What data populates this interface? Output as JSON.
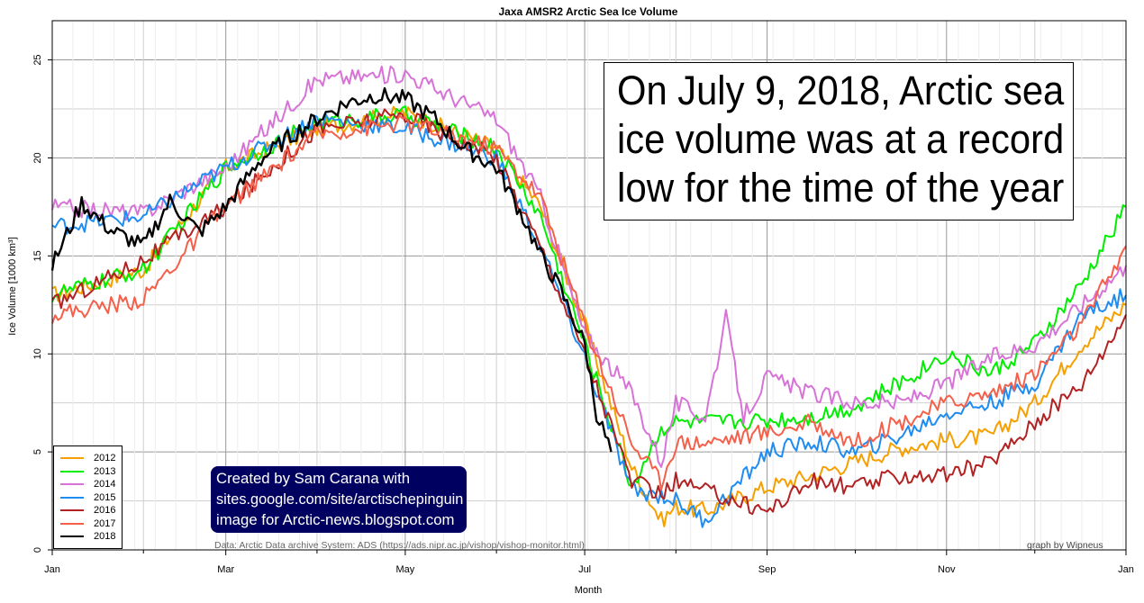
{
  "chart_data": {
    "type": "line",
    "title": "Jaxa AMSR2 Arctic Sea Ice Volume",
    "xlabel": "Month",
    "ylabel": "Ice Volume [1000 km³]",
    "ylim": [
      0,
      27
    ],
    "yticks": [
      0,
      5,
      10,
      15,
      20,
      25
    ],
    "xlim": [
      0,
      365
    ],
    "xticks": [
      {
        "day": 0,
        "label": "Jan"
      },
      {
        "day": 59,
        "label": "Mar"
      },
      {
        "day": 120,
        "label": "May"
      },
      {
        "day": 181,
        "label": "Jul"
      },
      {
        "day": 243,
        "label": "Sep"
      },
      {
        "day": 304,
        "label": "Nov"
      },
      {
        "day": 365,
        "label": "Jan"
      }
    ],
    "minor_ticks": [
      31,
      90,
      151,
      212,
      273,
      334
    ],
    "grid": true,
    "legend_position": "bottom-left",
    "series": [
      {
        "name": "2012",
        "color": "#f5a000",
        "x": [
          0,
          31,
          59,
          90,
          120,
          151,
          166,
          181,
          197,
          207,
          212,
          222,
          243,
          258,
          273,
          288,
          304,
          319,
          334,
          350,
          365
        ],
        "y": [
          13,
          14.3,
          19.5,
          21.5,
          22.3,
          20.5,
          17.5,
          11.5,
          4.2,
          1.5,
          2.2,
          2.0,
          3.2,
          3.8,
          4.5,
          5.2,
          5.6,
          5.8,
          7.5,
          10.5,
          12.5
        ]
      },
      {
        "name": "2013",
        "color": "#00ee00",
        "x": [
          0,
          31,
          59,
          90,
          120,
          151,
          166,
          181,
          197,
          207,
          212,
          222,
          243,
          258,
          273,
          288,
          304,
          319,
          334,
          350,
          365
        ],
        "y": [
          13,
          14.3,
          19.5,
          21.8,
          22.2,
          20.5,
          17,
          10.5,
          3.2,
          6.2,
          6.5,
          6.5,
          6.6,
          6.8,
          7.3,
          8.5,
          10,
          9.0,
          10.5,
          13.5,
          17.5
        ]
      },
      {
        "name": "2014",
        "color": "#d773d7",
        "x": [
          0,
          31,
          59,
          90,
          120,
          151,
          166,
          181,
          197,
          207,
          212,
          222,
          229,
          235,
          243,
          258,
          273,
          288,
          304,
          319,
          334,
          350,
          365
        ],
        "y": [
          17.5,
          17.2,
          19.5,
          24,
          24.3,
          22,
          18,
          11,
          8.0,
          4.5,
          7.5,
          6.8,
          11.8,
          6.8,
          8.8,
          8.0,
          7.5,
          7.5,
          8.5,
          9.8,
          10.5,
          12.5,
          14.5
        ]
      },
      {
        "name": "2015",
        "color": "#1e8cf0",
        "x": [
          0,
          31,
          59,
          90,
          120,
          151,
          166,
          181,
          197,
          207,
          212,
          222,
          243,
          258,
          273,
          288,
          304,
          319,
          334,
          350,
          365
        ],
        "y": [
          16.5,
          17,
          19.5,
          22,
          21.5,
          20,
          15.5,
          9.8,
          3.0,
          2.8,
          2.5,
          1.5,
          5.0,
          5.5,
          5.0,
          5.8,
          7.0,
          7.5,
          8.5,
          12.0,
          13.0
        ]
      },
      {
        "name": "2016",
        "color": "#b22222",
        "x": [
          0,
          31,
          59,
          90,
          120,
          151,
          166,
          181,
          197,
          207,
          212,
          222,
          243,
          258,
          273,
          288,
          304,
          319,
          334,
          350,
          365
        ],
        "y": [
          12.5,
          14.8,
          17.5,
          21.5,
          22.2,
          20,
          15.5,
          10,
          3.5,
          2.8,
          3.5,
          3.0,
          2.0,
          3.5,
          3.2,
          3.8,
          3.8,
          4.5,
          6.5,
          8.5,
          12.0
        ]
      },
      {
        "name": "2017",
        "color": "#f4604a",
        "x": [
          0,
          31,
          59,
          90,
          120,
          151,
          166,
          181,
          197,
          207,
          212,
          222,
          243,
          258,
          273,
          288,
          304,
          319,
          334,
          350,
          365
        ],
        "y": [
          12,
          12.8,
          17.5,
          21.2,
          21.8,
          20.5,
          18,
          11.5,
          5.5,
          3.5,
          5.5,
          5.5,
          6.0,
          6.5,
          5.5,
          6.5,
          7.5,
          8.0,
          9.0,
          11.5,
          15.5
        ]
      },
      {
        "name": "2018",
        "color": "#000000",
        "x": [
          0,
          10,
          20,
          31,
          40,
          50,
          59,
          70,
          80,
          90,
          100,
          110,
          120,
          130,
          140,
          151,
          160,
          166,
          172,
          181,
          185,
          190
        ],
        "y": [
          14.5,
          17.7,
          16.3,
          15.5,
          17.8,
          16.2,
          17.5,
          19.8,
          21.0,
          22.0,
          22.8,
          23.2,
          23.0,
          22.0,
          20.5,
          19.5,
          17.0,
          15.0,
          13.5,
          10.5,
          7.0,
          5.0
        ]
      }
    ]
  },
  "annotation": {
    "lines": [
      "On July 9, 2018, Arctic sea",
      "ice volume was at a record",
      "low for the time of the year"
    ]
  },
  "credit": {
    "lines": [
      "Created by Sam Carana with",
      "sites.google.com/site/arctischepinguin",
      "image for Arctic-news.blogspot.com"
    ]
  },
  "source_note": "Data: Arctic Data archive System: ADS (https://ads.nipr.ac.jp/vishop/vishop-monitor.html)",
  "byline": "graph by Wipneus"
}
